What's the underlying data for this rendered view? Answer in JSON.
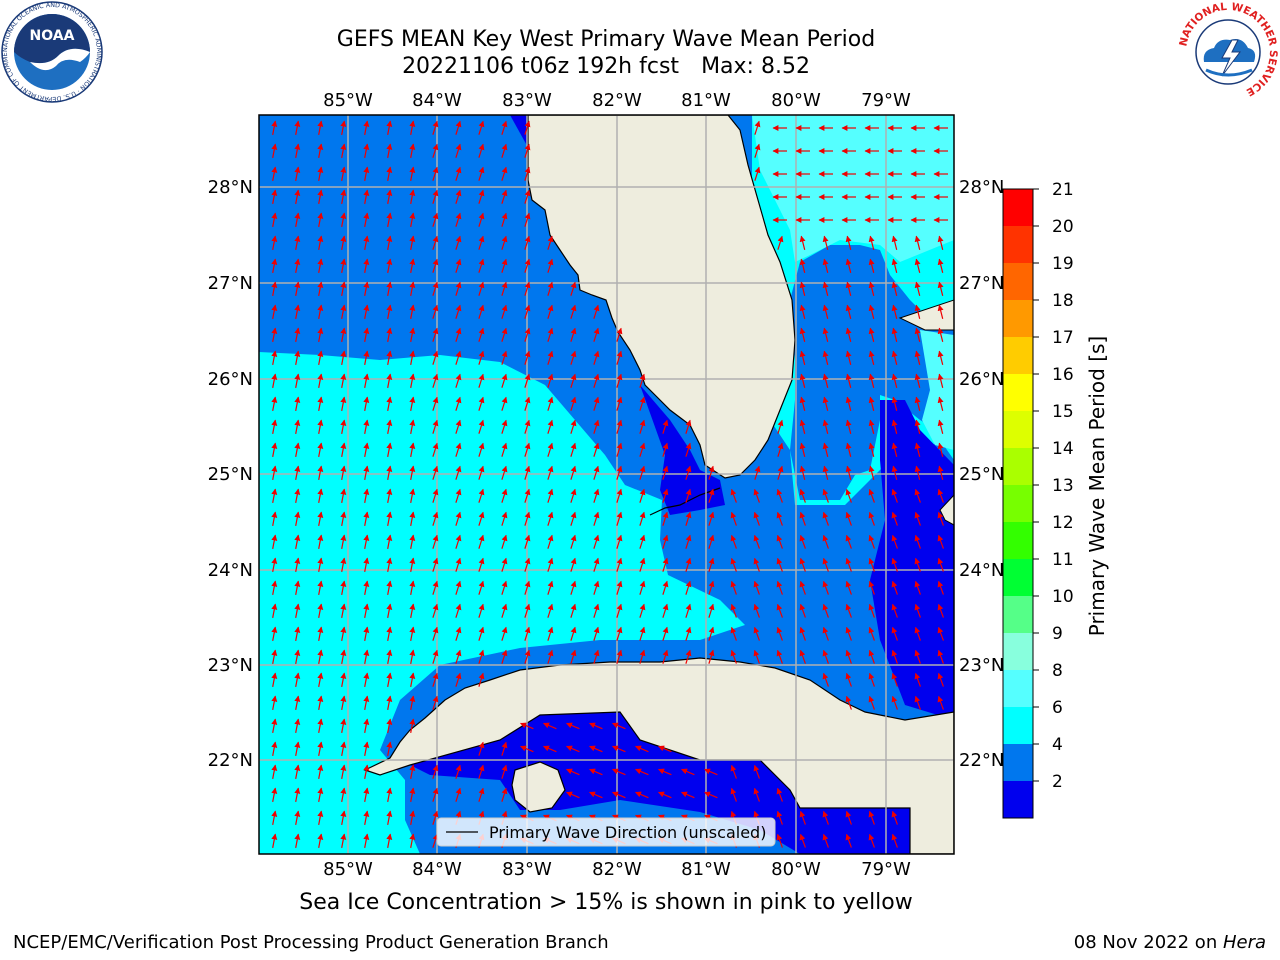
{
  "title": {
    "line1": "GEFS MEAN Key West Primary Wave Mean Period",
    "date_fcst": "20221106 t06z 192h fcst",
    "max_text": "Max: 8.52"
  },
  "map": {
    "lon_labels": [
      "85°W",
      "84°W",
      "83°W",
      "82°W",
      "81°W",
      "80°W",
      "79°W"
    ],
    "lat_labels": [
      "28°N",
      "27°N",
      "26°N",
      "25°N",
      "24°N",
      "23°N",
      "22°N"
    ],
    "legend_label": "Primary Wave Direction (unscaled)",
    "colors": {
      "land": "#eeedde",
      "c2_4": "#0000ee",
      "c4_6": "#0077ee",
      "c6_8": "#00ffff",
      "c8_9": "#55ffff",
      "arrow": "#ee0000",
      "grid": "#b0b0b0"
    }
  },
  "colorbar": {
    "label": "Primary Wave Mean Period [s]",
    "ticks": [
      "21",
      "20",
      "19",
      "18",
      "17",
      "16",
      "15",
      "14",
      "13",
      "12",
      "11",
      "10",
      "9",
      "8",
      "6",
      "4",
      "2"
    ],
    "colors": [
      "#ff0000",
      "#ff3300",
      "#ff6600",
      "#ff9900",
      "#ffcc00",
      "#ffff00",
      "#ddff00",
      "#aaff00",
      "#77ff00",
      "#33ff00",
      "#00ff33",
      "#55ff88",
      "#88ffdd",
      "#55ffff",
      "#00ffff",
      "#0077ee",
      "#0000ee"
    ]
  },
  "note": "Sea Ice Concentration > 15% is shown in pink to yellow",
  "footer": {
    "left": "NCEP/EMC/Verification Post Processing Product Generation Branch",
    "date": "08 Nov 2022 on ",
    "host": "Hera"
  },
  "logos": {
    "noaa_text": "NOAA",
    "noaa_ring": "NATIONAL OCEANIC AND ATMOSPHERIC ADMINISTRATION · U.S. DEPARTMENT OF COMMERCE",
    "nws_ring": "NATIONAL WEATHER SERVICE"
  }
}
